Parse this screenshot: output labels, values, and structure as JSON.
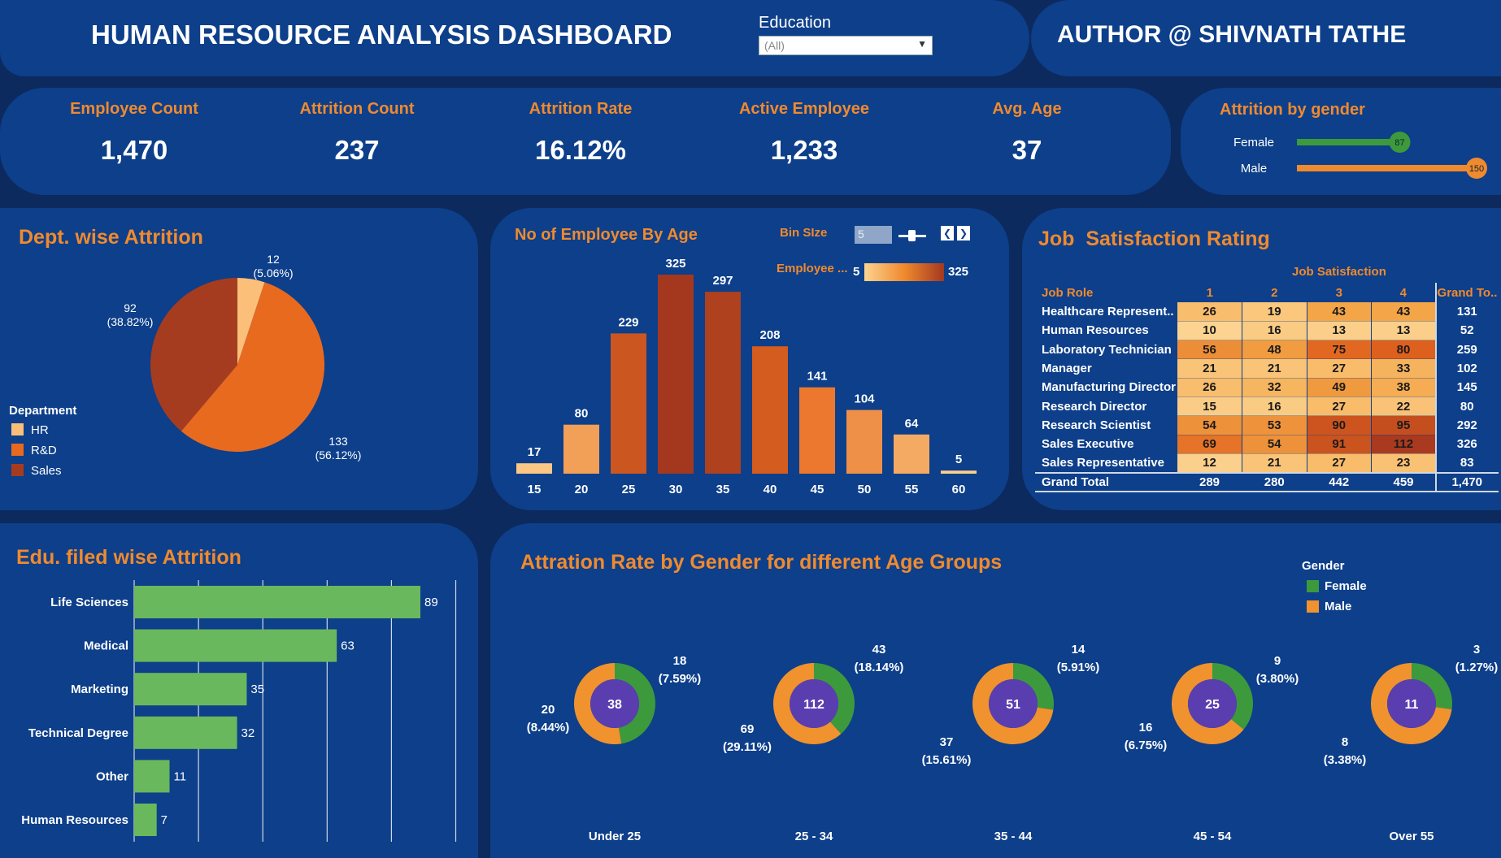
{
  "header": {
    "title": "HUMAN RESOURCE ANALYSIS DASHBOARD",
    "author": "AUTHOR @ SHIVNATH TATHE",
    "filter_label": "Education",
    "filter_value": "(All)"
  },
  "kpis": [
    {
      "label": "Employee Count",
      "value": "1,470"
    },
    {
      "label": "Attrition Count",
      "value": "237"
    },
    {
      "label": "Attrition Rate",
      "value": "16.12%"
    },
    {
      "label": "Active Employee",
      "value": "1,233"
    },
    {
      "label": "Avg. Age",
      "value": "37"
    }
  ],
  "colors": {
    "page": "#0c2a5e",
    "panel": "#0d3f8a",
    "accent": "#f08a2e",
    "green": "#3c9a3c",
    "bar_green": "#6ab85d",
    "hr": "#fbbf7a",
    "rd": "#e86a1f",
    "sales": "#a63c1f"
  },
  "chart_data": [
    {
      "id": "gender",
      "type": "bar",
      "title": "Attrition by gender",
      "categories": [
        "Female",
        "Male"
      ],
      "values": [
        87,
        150
      ],
      "xlim": [
        0,
        150
      ]
    },
    {
      "id": "dept",
      "type": "pie",
      "title": "Dept. wise Attrition",
      "legend_title": "Department",
      "legend_position": "left",
      "slices": [
        {
          "name": "HR",
          "value": 12,
          "label": "12",
          "pct": "(5.06%)"
        },
        {
          "name": "R&D",
          "value": 133,
          "label": "133",
          "pct": "(56.12%)"
        },
        {
          "name": "Sales",
          "value": 92,
          "label": "92",
          "pct": "(38.82%)"
        }
      ]
    },
    {
      "id": "age",
      "type": "bar",
      "title": "No of Employee By Age",
      "bin_label": "Bin SIze",
      "bin_value": "5",
      "color_legend_label": "Employee ...",
      "color_min": "5",
      "color_max": "325",
      "categories": [
        "15",
        "20",
        "25",
        "30",
        "35",
        "40",
        "45",
        "50",
        "55",
        "60"
      ],
      "values": [
        17,
        80,
        229,
        325,
        297,
        208,
        141,
        104,
        64,
        5
      ],
      "ylim": [
        0,
        325
      ]
    },
    {
      "id": "jobsat",
      "type": "table",
      "title": "Job  Satisfaction Rating",
      "col_group": "Job Satisfaction",
      "row_header": "Job Role",
      "columns": [
        "1",
        "2",
        "3",
        "4"
      ],
      "total_header": "Grand To..",
      "rows": [
        {
          "role": "Healthcare Represent..",
          "values": [
            26,
            19,
            43,
            43
          ],
          "total": "131"
        },
        {
          "role": "Human Resources",
          "values": [
            10,
            16,
            13,
            13
          ],
          "total": "52"
        },
        {
          "role": "Laboratory Technician",
          "values": [
            56,
            48,
            75,
            80
          ],
          "total": "259"
        },
        {
          "role": "Manager",
          "values": [
            21,
            21,
            27,
            33
          ],
          "total": "102"
        },
        {
          "role": "Manufacturing Director",
          "values": [
            26,
            32,
            49,
            38
          ],
          "total": "145"
        },
        {
          "role": "Research Director",
          "values": [
            15,
            16,
            27,
            22
          ],
          "total": "80"
        },
        {
          "role": "Research Scientist",
          "values": [
            54,
            53,
            90,
            95
          ],
          "total": "292"
        },
        {
          "role": "Sales Executive",
          "values": [
            69,
            54,
            91,
            112
          ],
          "total": "326"
        },
        {
          "role": "Sales Representative",
          "values": [
            12,
            21,
            27,
            23
          ],
          "total": "83"
        }
      ],
      "grand_total_label": "Grand Total",
      "grand_totals": [
        "289",
        "280",
        "442",
        "459"
      ],
      "grand_total_all": "1,470"
    },
    {
      "id": "edu",
      "type": "bar",
      "title": "Edu. filed wise Attrition",
      "categories": [
        "Life Sciences",
        "Medical",
        "Marketing",
        "Technical Degree",
        "Other",
        "Human Resources"
      ],
      "values": [
        89,
        63,
        35,
        32,
        11,
        7
      ],
      "xlim": [
        0,
        100
      ]
    },
    {
      "id": "agegroups",
      "type": "pie",
      "title": "Attration Rate by Gender for different Age Groups",
      "legend_title": "Gender",
      "legend_position": "top-right",
      "series_names": [
        "Female",
        "Male"
      ],
      "groups": [
        {
          "name": "Under 25",
          "total": "38",
          "female": 18,
          "female_label": "18",
          "female_pct": "(7.59%)",
          "male": 20,
          "male_label": "20",
          "male_pct": "(8.44%)"
        },
        {
          "name": "25 - 34",
          "total": "112",
          "female": 43,
          "female_label": "43",
          "female_pct": "(18.14%)",
          "male": 69,
          "male_label": "69",
          "male_pct": "(29.11%)"
        },
        {
          "name": "35 - 44",
          "total": "51",
          "female": 14,
          "female_label": "14",
          "female_pct": "(5.91%)",
          "male": 37,
          "male_label": "37",
          "male_pct": "(15.61%)"
        },
        {
          "name": "45 - 54",
          "total": "25",
          "female": 9,
          "female_label": "9",
          "female_pct": "(3.80%)",
          "male": 16,
          "male_label": "16",
          "male_pct": "(6.75%)"
        },
        {
          "name": "Over 55",
          "total": "11",
          "female": 3,
          "female_label": "3",
          "female_pct": "(1.27%)",
          "male": 8,
          "male_label": "8",
          "male_pct": "(3.38%)"
        }
      ]
    }
  ]
}
